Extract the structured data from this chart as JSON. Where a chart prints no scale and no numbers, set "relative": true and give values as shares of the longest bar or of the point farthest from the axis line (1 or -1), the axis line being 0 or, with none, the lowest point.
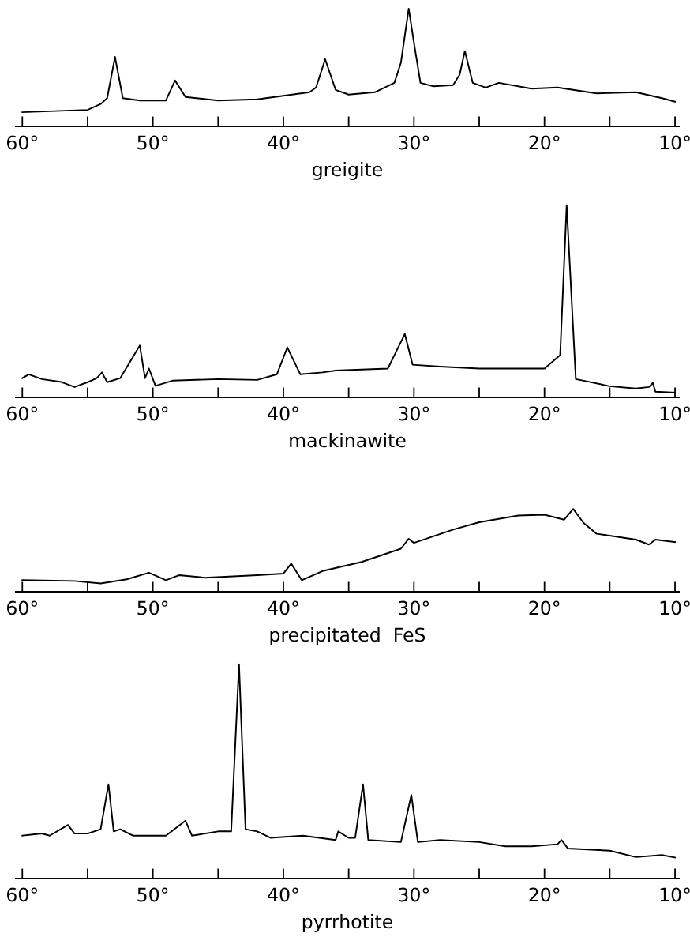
{
  "chart_data": [
    {
      "type": "line",
      "relative": true,
      "xlabel": "greigite",
      "xlim": [
        60.5,
        9.7
      ],
      "xticks": [
        {
          "value": 60,
          "label": "60°"
        },
        {
          "value": 55,
          "label": null
        },
        {
          "value": 50,
          "label": "50°"
        },
        {
          "value": 45,
          "label": null
        },
        {
          "value": 40,
          "label": "40°"
        },
        {
          "value": 35,
          "label": null
        },
        {
          "value": 30,
          "label": "30°"
        },
        {
          "value": 25,
          "label": null
        },
        {
          "value": 20,
          "label": "20°"
        },
        {
          "value": 15,
          "label": null
        },
        {
          "value": 10,
          "label": "10°"
        }
      ],
      "grid": false,
      "legend": false,
      "series": [
        {
          "color": "#000000",
          "x": [
            60,
            55,
            54,
            53.5,
            52.9,
            52.3,
            51,
            49,
            48.3,
            47.5,
            45,
            42,
            40,
            38,
            37.5,
            36.8,
            36,
            35,
            33,
            31.5,
            31,
            30.4,
            30,
            29.5,
            28.5,
            27,
            26.5,
            26.1,
            25.5,
            24.5,
            23.5,
            21,
            19,
            16,
            13,
            11,
            10
          ],
          "values": [
            0.12,
            0.14,
            0.19,
            0.24,
            0.59,
            0.24,
            0.22,
            0.22,
            0.39,
            0.25,
            0.22,
            0.23,
            0.26,
            0.29,
            0.33,
            0.57,
            0.31,
            0.27,
            0.29,
            0.37,
            0.54,
            1.0,
            0.71,
            0.37,
            0.34,
            0.35,
            0.44,
            0.64,
            0.37,
            0.33,
            0.37,
            0.32,
            0.33,
            0.28,
            0.29,
            0.24,
            0.21
          ]
        }
      ]
    },
    {
      "type": "line",
      "relative": true,
      "xlabel": "mackinawite",
      "xlim": [
        60.5,
        9.7
      ],
      "xticks": [
        {
          "value": 60,
          "label": "60°"
        },
        {
          "value": 55,
          "label": null
        },
        {
          "value": 50,
          "label": "50°"
        },
        {
          "value": 45,
          "label": null
        },
        {
          "value": 40,
          "label": "40°"
        },
        {
          "value": 35,
          "label": null
        },
        {
          "value": 30,
          "label": "30°"
        },
        {
          "value": 25,
          "label": null
        },
        {
          "value": 20,
          "label": "20°"
        },
        {
          "value": 15,
          "label": null
        },
        {
          "value": 10,
          "label": "10°"
        }
      ],
      "grid": false,
      "legend": false,
      "series": [
        {
          "color": "#000000",
          "x": [
            60,
            59.5,
            58.5,
            57,
            56,
            55,
            54.3,
            53.9,
            53.5,
            52.5,
            51.0,
            50.6,
            50.3,
            49.8,
            48.5,
            45,
            42,
            40.5,
            39.7,
            38.7,
            37,
            36,
            32,
            30.7,
            30.1,
            28,
            25,
            22,
            20,
            18.8,
            18.3,
            17.6,
            17,
            15,
            13,
            12,
            11.7,
            11.5,
            10
          ],
          "values": [
            0.1,
            0.12,
            0.095,
            0.08,
            0.054,
            0.079,
            0.1,
            0.13,
            0.079,
            0.1,
            0.27,
            0.1,
            0.15,
            0.06,
            0.087,
            0.095,
            0.091,
            0.12,
            0.26,
            0.12,
            0.13,
            0.14,
            0.15,
            0.33,
            0.17,
            0.16,
            0.15,
            0.15,
            0.15,
            0.22,
            1.0,
            0.095,
            0.087,
            0.058,
            0.046,
            0.054,
            0.075,
            0.03,
            0.025
          ]
        }
      ]
    },
    {
      "type": "line",
      "relative": true,
      "xlabel": "precipitated  FeS",
      "xlim": [
        60.5,
        9.7
      ],
      "xticks": [
        {
          "value": 60,
          "label": "60°"
        },
        {
          "value": 55,
          "label": null
        },
        {
          "value": 50,
          "label": "50°"
        },
        {
          "value": 45,
          "label": null
        },
        {
          "value": 40,
          "label": "40°"
        },
        {
          "value": 35,
          "label": null
        },
        {
          "value": 30,
          "label": "30°"
        },
        {
          "value": 25,
          "label": null
        },
        {
          "value": 20,
          "label": "20°"
        },
        {
          "value": 15,
          "label": null
        },
        {
          "value": 10,
          "label": "10°"
        }
      ],
      "grid": false,
      "legend": false,
      "series": [
        {
          "color": "#000000",
          "x": [
            60,
            56,
            54,
            52,
            50.3,
            49,
            48,
            46,
            42,
            40,
            39.4,
            38.6,
            37,
            34,
            31,
            30.4,
            30,
            27,
            25,
            22,
            20,
            18.5,
            17.8,
            17,
            16,
            13,
            12,
            11.5,
            10
          ],
          "values": [
            0.14,
            0.13,
            0.1,
            0.15,
            0.23,
            0.14,
            0.2,
            0.17,
            0.2,
            0.22,
            0.34,
            0.14,
            0.25,
            0.36,
            0.52,
            0.64,
            0.59,
            0.75,
            0.84,
            0.92,
            0.93,
            0.87,
            1.0,
            0.83,
            0.7,
            0.63,
            0.57,
            0.63,
            0.6
          ]
        }
      ]
    },
    {
      "type": "line",
      "relative": true,
      "xlabel": "pyrrhotite",
      "xlim": [
        60.5,
        9.7
      ],
      "xticks": [
        {
          "value": 60,
          "label": "60°"
        },
        {
          "value": 55,
          "label": null
        },
        {
          "value": 50,
          "label": "50°"
        },
        {
          "value": 45,
          "label": null
        },
        {
          "value": 40,
          "label": "40°"
        },
        {
          "value": 35,
          "label": null
        },
        {
          "value": 30,
          "label": "30°"
        },
        {
          "value": 25,
          "label": null
        },
        {
          "value": 20,
          "label": "20°"
        },
        {
          "value": 15,
          "label": null
        },
        {
          "value": 10,
          "label": "10°"
        }
      ],
      "grid": false,
      "legend": false,
      "series": [
        {
          "color": "#000000",
          "x": [
            60,
            58.5,
            57.9,
            56.5,
            56,
            55,
            54,
            53.4,
            53,
            52.5,
            51.5,
            49,
            47.5,
            47,
            45,
            44,
            43.4,
            42.9,
            42,
            41,
            38.5,
            36,
            35.8,
            35,
            34.5,
            33.9,
            33.5,
            31,
            30.2,
            29.7,
            28,
            25,
            23,
            21,
            19,
            18.7,
            18.2,
            15,
            13,
            11,
            10
          ],
          "values": [
            0.2,
            0.21,
            0.2,
            0.25,
            0.21,
            0.21,
            0.23,
            0.44,
            0.22,
            0.23,
            0.2,
            0.2,
            0.27,
            0.2,
            0.22,
            0.22,
            1.0,
            0.23,
            0.22,
            0.19,
            0.2,
            0.18,
            0.22,
            0.19,
            0.19,
            0.44,
            0.18,
            0.17,
            0.39,
            0.17,
            0.18,
            0.17,
            0.15,
            0.15,
            0.16,
            0.18,
            0.14,
            0.13,
            0.1,
            0.11,
            0.098
          ]
        }
      ]
    }
  ]
}
